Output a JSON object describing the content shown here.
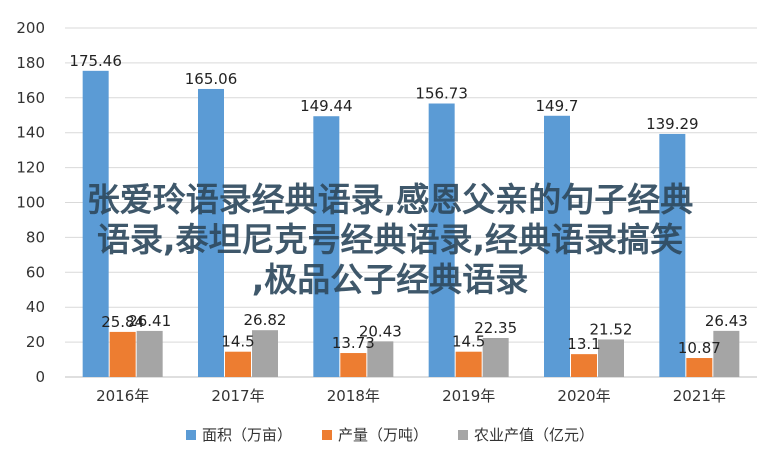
{
  "chart_data": {
    "type": "bar",
    "categories": [
      "2016年",
      "2017年",
      "2018年",
      "2019年",
      "2020年",
      "2021年"
    ],
    "series": [
      {
        "name": "面积（万亩）",
        "color": "#5b9bd5",
        "values": [
          175.46,
          165.06,
          149.44,
          156.73,
          149.7,
          139.29
        ],
        "labels": [
          "175.46",
          "165.06",
          "149.44",
          "156.73",
          "149.7",
          "139.29"
        ]
      },
      {
        "name": "产量（万吨）",
        "color": "#ed7d31",
        "values": [
          25.84,
          14.5,
          13.73,
          14.5,
          13.1,
          10.87
        ],
        "labels": [
          "25.84",
          "14.5",
          "13.73",
          "14.5",
          "13.1",
          "10.87"
        ]
      },
      {
        "name": "农业产值（亿元）",
        "color": "#a5a5a5",
        "values": [
          26.41,
          26.82,
          20.43,
          22.35,
          21.52,
          26.43
        ],
        "labels": [
          "26.41",
          "26.82",
          "20.43",
          "22.35",
          "21.52",
          "26.43"
        ]
      }
    ],
    "ylim": [
      0,
      200
    ],
    "yticks": [
      0,
      20,
      40,
      60,
      80,
      100,
      120,
      140,
      160,
      180,
      200
    ],
    "grid": true,
    "legend": "bottom"
  },
  "watermark": {
    "line1": "张爱玲语录经典语录,感恩父亲的句子经典",
    "line2": "语录,泰坦尼克号经典语录,经典语录搞笑",
    "line3": ",极品公子经典语录"
  }
}
